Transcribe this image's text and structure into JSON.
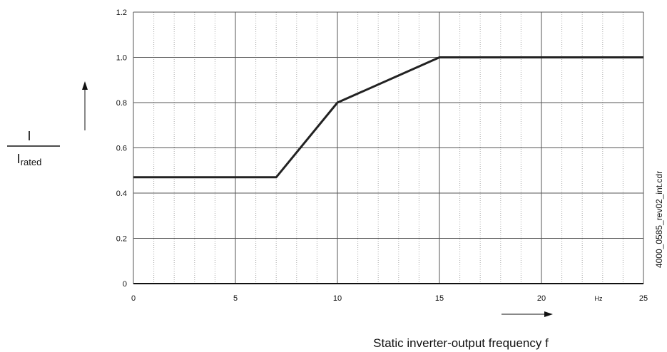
{
  "chart_data": {
    "type": "line",
    "x": [
      0,
      7,
      10,
      15,
      25
    ],
    "y": [
      0.47,
      0.47,
      0.8,
      1.0,
      1.0
    ],
    "xlim": [
      0,
      25
    ],
    "ylim": [
      0,
      1.2
    ],
    "x_ticks": [
      0,
      5,
      10,
      15,
      20,
      25
    ],
    "y_ticks": [
      0,
      0.2,
      0.4,
      0.6,
      0.8,
      1.0,
      1.2
    ],
    "x_tick_labels": [
      "0",
      "5",
      "10",
      "15",
      "20",
      "25"
    ],
    "y_tick_labels": [
      "0",
      "0.2",
      "0.4",
      "0.6",
      "0.8",
      "1.0",
      "1.2"
    ],
    "x_unit": "Hz",
    "xlabel": "Static inverter-output frequency f",
    "ylabel_numerator": "I",
    "ylabel_denominator": "I",
    "ylabel_denominator_subscript": "rated",
    "grid": "major solid, minor dotted",
    "minor_x_step": 1,
    "file_name": "4000_0585_rev02_int.cdr",
    "colors": {
      "line": "#222222",
      "grid_major": "#555555",
      "grid_minor": "#aaaaaa"
    }
  }
}
